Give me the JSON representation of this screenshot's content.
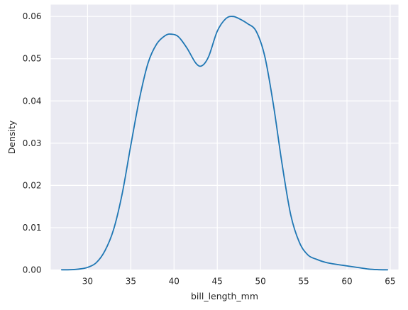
{
  "chart_data": {
    "type": "line",
    "kind": "kde",
    "title": "",
    "xlabel": "bill_length_mm",
    "ylabel": "Density",
    "xlim": [
      25.74,
      65.95
    ],
    "ylim": [
      0,
      0.0628
    ],
    "xticks": [
      30,
      35,
      40,
      45,
      50,
      55,
      60,
      65
    ],
    "yticks": [
      0.0,
      0.01,
      0.02,
      0.03,
      0.04,
      0.05,
      0.06
    ],
    "ytick_labels": [
      "0.00",
      "0.01",
      "0.02",
      "0.03",
      "0.04",
      "0.05",
      "0.06"
    ],
    "grid": true,
    "background": "#eaeaf2",
    "line_color": "#1f77b4",
    "series": [
      {
        "x": [
          27,
          28,
          29,
          30,
          31,
          32,
          33,
          34,
          35,
          36,
          37,
          38,
          39,
          39.7,
          40.5,
          41.5,
          42.5,
          43.2,
          44,
          45,
          46,
          46.8,
          47.5,
          48.5,
          49.5,
          50.5,
          51.5,
          52.5,
          53.5,
          54.5,
          55.5,
          56.5,
          57.5,
          58.5,
          59.5,
          60.5,
          61.5,
          62.5,
          63.5,
          64.7
        ],
        "y": [
          3e-05,
          5e-05,
          0.0002,
          0.0006,
          0.0017,
          0.0045,
          0.0095,
          0.018,
          0.0295,
          0.0405,
          0.049,
          0.0535,
          0.0555,
          0.0558,
          0.0552,
          0.0525,
          0.049,
          0.0483,
          0.0505,
          0.0565,
          0.0595,
          0.06,
          0.0595,
          0.0583,
          0.0565,
          0.0505,
          0.039,
          0.025,
          0.013,
          0.0065,
          0.0035,
          0.0025,
          0.0018,
          0.0014,
          0.0011,
          0.0008,
          0.0005,
          0.0002,
          7e-05,
          2e-05
        ]
      }
    ]
  }
}
